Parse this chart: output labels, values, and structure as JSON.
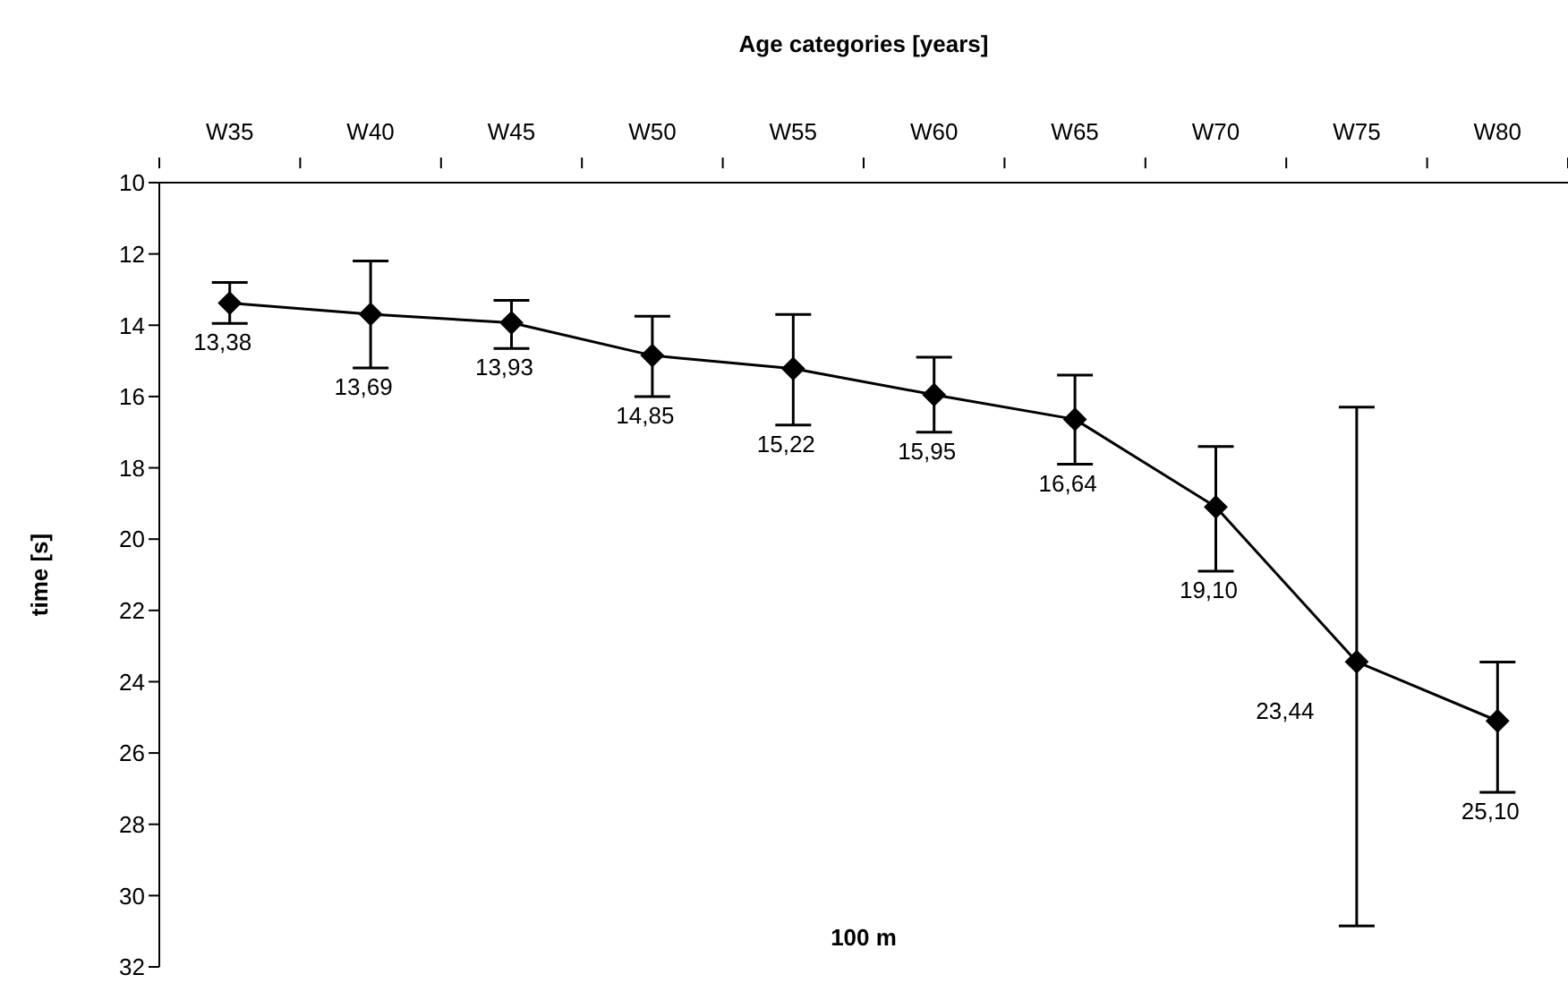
{
  "chart_data": {
    "type": "line",
    "xlabel": "Age categories [years]",
    "ylabel": "time [s]",
    "annotations": [
      "100 m"
    ],
    "categories": [
      "W35",
      "W40",
      "W45",
      "W50",
      "W55",
      "W60",
      "W65",
      "W70",
      "W75",
      "W80"
    ],
    "series": [
      {
        "color": "#000000",
        "values": [
          13.38,
          13.69,
          13.93,
          14.85,
          15.22,
          15.95,
          16.64,
          19.1,
          23.44,
          25.1
        ],
        "value_labels": [
          "13,38",
          "13,69",
          "13,93",
          "14,85",
          "15,22",
          "15,95",
          "16,64",
          "19,10",
          "23,44",
          "25,10"
        ],
        "errors": [
          [
            12.8,
            13.95
          ],
          [
            12.2,
            15.2
          ],
          [
            13.3,
            14.65
          ],
          [
            13.75,
            16.0
          ],
          [
            13.7,
            16.8
          ],
          [
            14.9,
            17.0
          ],
          [
            15.4,
            17.9
          ],
          [
            17.4,
            20.9
          ],
          [
            16.3,
            30.85
          ],
          [
            23.45,
            27.1
          ]
        ]
      }
    ],
    "ylim": [
      32,
      10
    ],
    "yticks": [
      10,
      12,
      14,
      16,
      18,
      20,
      22,
      24,
      26,
      28,
      30,
      32
    ],
    "grid": false,
    "legend": false,
    "marker": "diamond",
    "line_style": "solid"
  }
}
